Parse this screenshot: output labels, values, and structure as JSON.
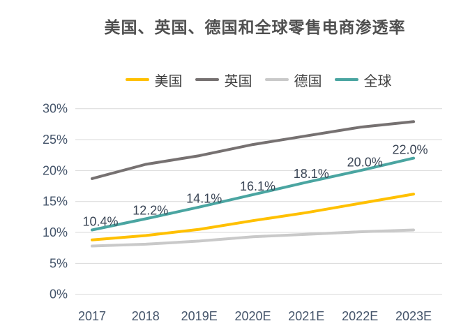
{
  "title": "美国、英国、德国和全球零售电商渗透率",
  "colors": {
    "background": "#ffffff",
    "title_text": "#4f4f4f",
    "axis_text": "#44546a",
    "data_label_text": "#3b4656",
    "gridline": "#d9d9d9",
    "series_us": "#ffc000",
    "series_uk": "#767171",
    "series_germany": "#c9c9c9",
    "series_global": "#4aa5a1"
  },
  "chart_data": {
    "type": "line",
    "title": "美国、英国、德国和全球零售电商渗透率",
    "categories": [
      "2017",
      "2018",
      "2019E",
      "2020E",
      "2021E",
      "2022E",
      "2023E"
    ],
    "series": [
      {
        "key": "us",
        "name": "美国",
        "color": "#ffc000",
        "values": [
          8.8,
          9.5,
          10.5,
          11.9,
          13.2,
          14.7,
          16.2
        ]
      },
      {
        "key": "uk",
        "name": "英国",
        "color": "#767171",
        "values": [
          18.7,
          21.0,
          22.4,
          24.2,
          25.6,
          27.0,
          27.9
        ]
      },
      {
        "key": "germany",
        "name": "德国",
        "color": "#c9c9c9",
        "values": [
          7.8,
          8.1,
          8.6,
          9.3,
          9.7,
          10.1,
          10.4
        ]
      },
      {
        "key": "global",
        "name": "全球",
        "color": "#4aa5a1",
        "values": [
          10.4,
          12.2,
          14.1,
          16.1,
          18.1,
          20.0,
          22.0
        ],
        "data_labels": [
          "10.4%",
          "12.2%",
          "14.1%",
          "16.1%",
          "18.1%",
          "20.0%",
          "22.0%"
        ]
      }
    ],
    "xlabel": "",
    "ylabel": "",
    "ylim": [
      0,
      30
    ],
    "ytick_step": 5,
    "ytick_labels": [
      "0%",
      "5%",
      "10%",
      "15%",
      "20%",
      "25%",
      "30%"
    ],
    "grid": "horizontal",
    "legend_position": "top"
  }
}
